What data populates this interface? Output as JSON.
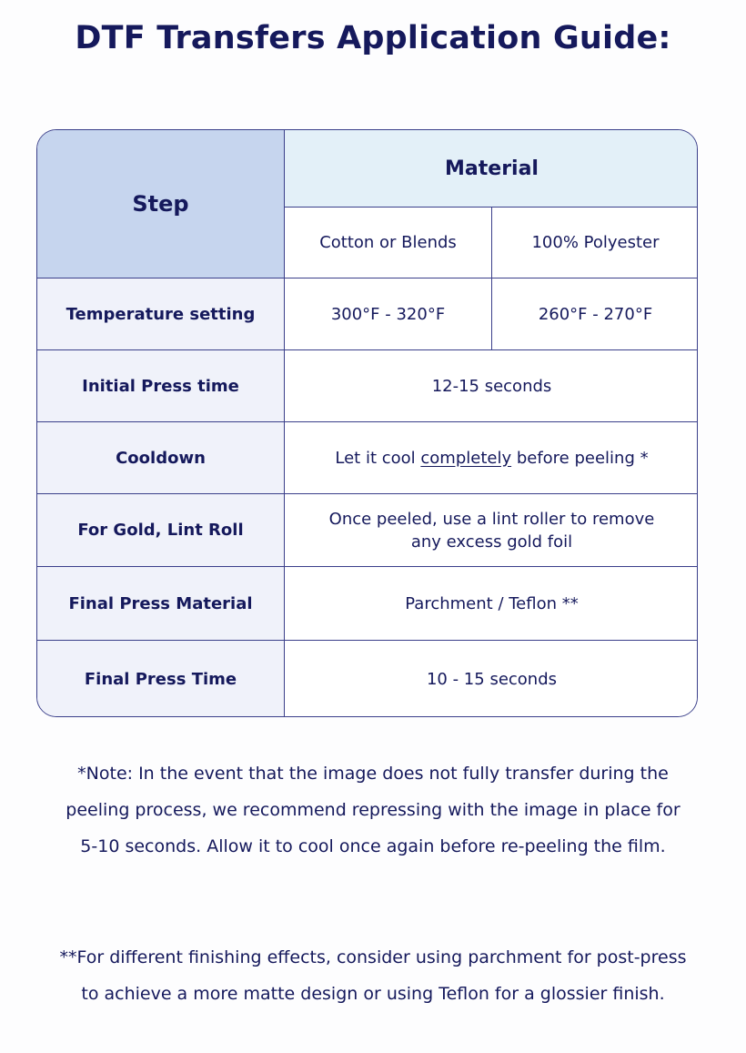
{
  "title": "DTF Transfers Application Guide:",
  "table": {
    "step_header": "Step",
    "material_header": "Material",
    "materials": [
      "Cotton or Blends",
      "100% Polyester"
    ],
    "rows": [
      {
        "step": "Temperature setting",
        "cotton": "300°F - 320°F",
        "polyester": "260°F - 270°F"
      },
      {
        "step": "Initial Press time",
        "value": "12-15 seconds"
      },
      {
        "step": "Cooldown",
        "value_before": "Let it cool ",
        "value_underlined": "completely",
        "value_after": " before peeling *"
      },
      {
        "step": "For Gold, Lint Roll",
        "value": "Once peeled, use a lint roller to remove any excess gold foil"
      },
      {
        "step": "Final Press Material",
        "value": "Parchment / Teflon **"
      },
      {
        "step": "Final Press Time",
        "value": "10 - 15 seconds"
      }
    ]
  },
  "notes": {
    "note1": "*Note: In the event that the image does not fully transfer during the peeling process, we recommend repressing with the image in place for 5-10 seconds. Allow it to cool once again before re-peeling the film.",
    "note2": "**For different finishing effects, consider using parchment for post-press to achieve a more matte design or using Teflon for a glossier finish."
  },
  "colors": {
    "text": "#15195c",
    "step_header_bg": "#c6d5ee",
    "material_header_bg": "#e3f0f8",
    "step_col_bg": "#f0f2fa",
    "border": "#3a3f8a"
  }
}
